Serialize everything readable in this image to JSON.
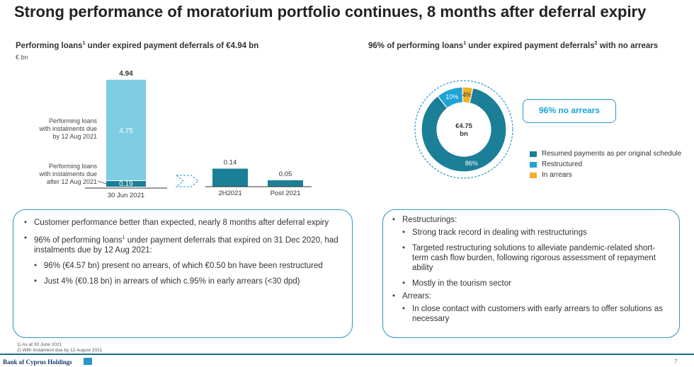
{
  "title": "Strong performance of moratorium portfolio continues, 8 months after deferral expiry",
  "left_subtitle": "Performing loans",
  "left_subtitle_rest": " under expired payment deferrals of €4.94 bn",
  "right_subtitle": "96% of performing loans",
  "right_subtitle_mid": " under expired payment deferrals",
  "right_subtitle_rest": " with no arrears",
  "sup1": "1",
  "sup2": "2",
  "unit": "€ bn",
  "chart_data": [
    {
      "type": "bar",
      "title": "Performing loans1 under expired payment deferrals of €4.94 bn",
      "unit": "€ bn",
      "categories": [
        "30 Jun 2021",
        "2H2021",
        "Post 2021"
      ],
      "stacked_bar": {
        "category": "30 Jun 2021",
        "total": 4.94,
        "segments": [
          {
            "name": "Performing loans with instalments due by 12 Aug 2021",
            "value": 4.75,
            "color": "#7dcde3"
          },
          {
            "name": "Performing loans with instalments due after 12 Aug 2021",
            "value": 0.19,
            "color": "#1a7f97"
          }
        ]
      },
      "breakdown": [
        {
          "category": "2H2021",
          "value": 0.14,
          "color": "#1a7f97"
        },
        {
          "category": "Post 2021",
          "value": 0.05,
          "color": "#1a7f97"
        }
      ],
      "annotations": {
        "top_label": "4.94",
        "seg1_label": "4.75",
        "seg2_label": "0.19",
        "seg1_desc": [
          "Performing loans",
          "with instalments due",
          "by 12 Aug 2021"
        ],
        "seg2_desc": [
          "Performing loans",
          "with instalments due",
          "after 12 Aug 2021"
        ],
        "b1_label": "0.14",
        "b2_label": "0.05"
      }
    },
    {
      "type": "pie",
      "title": "96% of performing loans1 under expired payment deferrals2 with no arrears",
      "center_label": [
        "€4.75",
        "bn"
      ],
      "slices": [
        {
          "name": "Resumed payments as per original schedule",
          "value": 86,
          "label": "86%",
          "color": "#1a7f97"
        },
        {
          "name": "Restructured",
          "value": 10,
          "label": "10%",
          "color": "#1ea3d3"
        },
        {
          "name": "In arrears",
          "value": 4,
          "label": "4%",
          "color": "#f2b12b"
        }
      ]
    }
  ],
  "no_arrears_callout": "96% no arrears",
  "left_box": [
    {
      "level": 1,
      "text": "Customer performance better than expected, nearly 8 months after deferral expiry"
    },
    {
      "level": 1,
      "text": "96% of performing loans",
      "sup": "1",
      "text_after": " under payment deferrals that expired on 31 Dec 2020, had instalments due by 12 Aug 2021:"
    },
    {
      "level": 2,
      "text": "96% (€4.57 bn) present no arrears, of which €0.50 bn have been restructured"
    },
    {
      "level": 2,
      "text": "Just 4% (€0.18 bn) in arrears of which c.95% in early arrears (<30 dpd)"
    }
  ],
  "right_box": [
    {
      "level": 1,
      "text": "Restructurings:"
    },
    {
      "level": 2,
      "text": "Strong track record in dealing with restructurings"
    },
    {
      "level": 2,
      "text": "Targeted restructuring solutions to alleviate pandemic-related short-term cash flow burden, following rigorous assessment of repayment ability"
    },
    {
      "level": 2,
      "text": "Mostly in the tourism sector"
    },
    {
      "level": 1,
      "text": "Arrears:"
    },
    {
      "level": 2,
      "text": "In close contact with customers with early arrears to offer solutions as necessary"
    }
  ],
  "footnotes": [
    "1)    As at 30 June 2021",
    "2)    With instalment due by 12 August 2021"
  ],
  "brand": "Bank of Cyprus Holdings",
  "page_number": "7"
}
